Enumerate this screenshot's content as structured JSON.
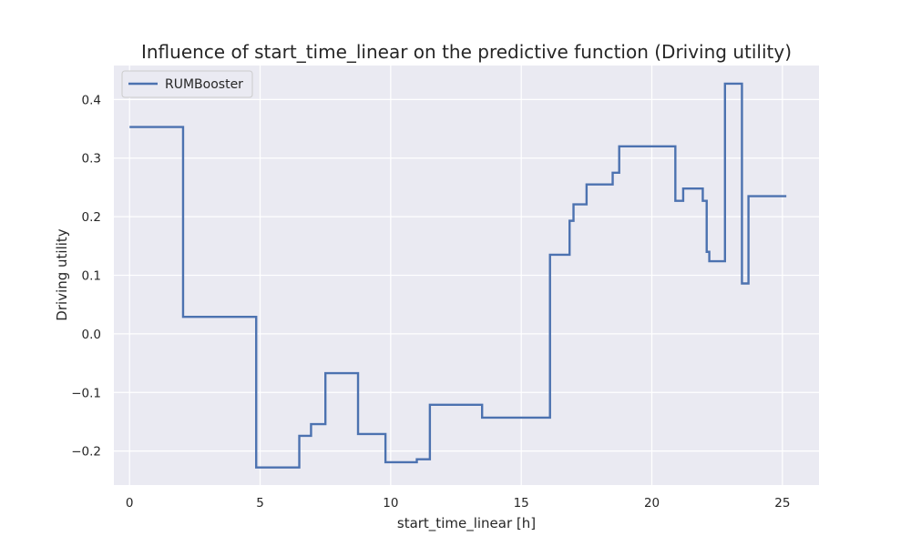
{
  "chart_data": {
    "type": "line",
    "title": "Influence of start_time_linear on the predictive function (Driving utility)",
    "xlabel": "start_time_linear [h]",
    "ylabel": "Driving utility",
    "xlim": [
      -0.6,
      26.4
    ],
    "ylim": [
      -0.258,
      0.458
    ],
    "x_ticks": [
      0,
      5,
      10,
      15,
      20,
      25
    ],
    "y_ticks": [
      -0.2,
      -0.1,
      0.0,
      0.1,
      0.2,
      0.3,
      0.4
    ],
    "x_tick_labels": [
      "0",
      "5",
      "10",
      "15",
      "20",
      "25"
    ],
    "y_tick_labels": [
      "−0.2",
      "−0.1",
      "0.0",
      "0.1",
      "0.2",
      "0.3",
      "0.4"
    ],
    "grid": true,
    "legend_position": "top-left",
    "colors": {
      "background": "#eaeaf2",
      "grid": "#ffffff",
      "series": "#4c72b0"
    },
    "series": [
      {
        "name": "RUMBooster",
        "style": "step",
        "points": [
          [
            0.0,
            0.353
          ],
          [
            2.05,
            0.353
          ],
          [
            2.05,
            0.029
          ],
          [
            4.85,
            0.029
          ],
          [
            4.85,
            -0.228
          ],
          [
            6.5,
            -0.228
          ],
          [
            6.5,
            -0.174
          ],
          [
            6.95,
            -0.174
          ],
          [
            6.95,
            -0.154
          ],
          [
            7.5,
            -0.154
          ],
          [
            7.5,
            -0.067
          ],
          [
            8.75,
            -0.067
          ],
          [
            8.75,
            -0.171
          ],
          [
            9.8,
            -0.171
          ],
          [
            9.8,
            -0.219
          ],
          [
            11.0,
            -0.219
          ],
          [
            11.0,
            -0.214
          ],
          [
            11.5,
            -0.214
          ],
          [
            11.5,
            -0.121
          ],
          [
            13.5,
            -0.121
          ],
          [
            13.5,
            -0.143
          ],
          [
            16.1,
            -0.143
          ],
          [
            16.1,
            0.135
          ],
          [
            16.85,
            0.135
          ],
          [
            16.85,
            0.193
          ],
          [
            17.0,
            0.193
          ],
          [
            17.0,
            0.221
          ],
          [
            17.5,
            0.221
          ],
          [
            17.5,
            0.255
          ],
          [
            18.5,
            0.255
          ],
          [
            18.5,
            0.275
          ],
          [
            18.75,
            0.275
          ],
          [
            18.75,
            0.32
          ],
          [
            20.9,
            0.32
          ],
          [
            20.9,
            0.227
          ],
          [
            21.2,
            0.227
          ],
          [
            21.2,
            0.248
          ],
          [
            21.95,
            0.248
          ],
          [
            21.95,
            0.227
          ],
          [
            22.1,
            0.227
          ],
          [
            22.1,
            0.14
          ],
          [
            22.2,
            0.14
          ],
          [
            22.2,
            0.124
          ],
          [
            22.8,
            0.124
          ],
          [
            22.8,
            0.427
          ],
          [
            23.45,
            0.427
          ],
          [
            23.45,
            0.086
          ],
          [
            23.7,
            0.086
          ],
          [
            23.7,
            0.235
          ],
          [
            25.15,
            0.235
          ]
        ]
      }
    ]
  }
}
